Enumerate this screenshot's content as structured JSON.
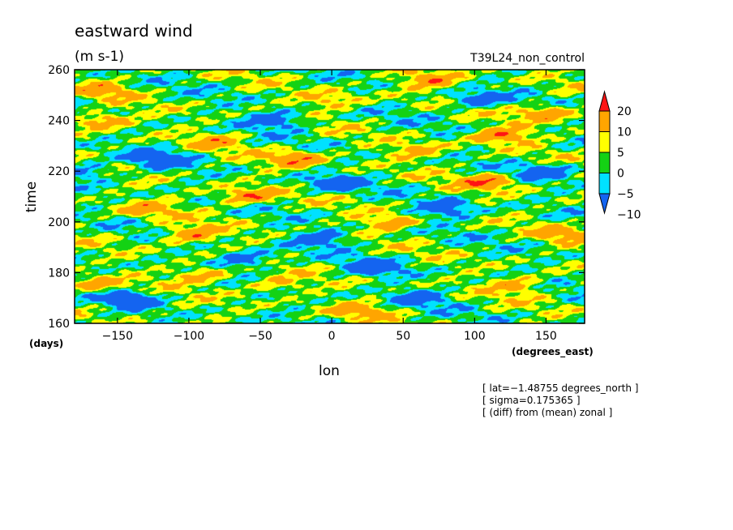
{
  "chart_data": {
    "type": "heatmap",
    "title": "eastward wind",
    "units": "(m s-1)",
    "experiment": "T39L24_non_control",
    "xlabel": "lon",
    "xunits": "(degrees_east)",
    "ylabel": "time",
    "yunits": "(days)",
    "xlim": [
      -180,
      177
    ],
    "ylim": [
      160,
      260
    ],
    "x_ticks": [
      -150,
      -100,
      -50,
      0,
      50,
      100,
      150
    ],
    "y_ticks": [
      160,
      180,
      200,
      220,
      240,
      260
    ],
    "colorbar": {
      "levels": [
        -10,
        -5,
        0,
        5,
        10,
        20
      ],
      "labels": [
        "20",
        "10",
        "5",
        "0",
        "−5",
        "−10"
      ],
      "colors": [
        "#1464f0",
        "#00e1ff",
        "#14d214",
        "#ffff00",
        "#ffa500",
        "#ff1414"
      ],
      "extend": "both"
    },
    "blobs": [
      {
        "lon": -60,
        "day": 210,
        "value": 22
      },
      {
        "lon": 120,
        "day": 234,
        "value": 22
      },
      {
        "lon": -100,
        "day": 195,
        "value": 21
      },
      {
        "lon": -25,
        "day": 225,
        "value": 21
      },
      {
        "lon": -160,
        "day": 240,
        "value": 21
      },
      {
        "lon": 150,
        "day": 243,
        "value": 21
      },
      {
        "lon": -90,
        "day": 179,
        "value": 20
      },
      {
        "lon": 110,
        "day": 216,
        "value": 20
      },
      {
        "lon": 70,
        "day": 256,
        "value": 20
      },
      {
        "lon": -130,
        "day": 205,
        "value": 16
      },
      {
        "lon": 40,
        "day": 200,
        "value": 16
      },
      {
        "lon": 130,
        "day": 175,
        "value": 17
      },
      {
        "lon": 20,
        "day": 165,
        "value": 16
      },
      {
        "lon": -165,
        "day": 175,
        "value": 16
      },
      {
        "lon": -40,
        "day": 175,
        "value": 15
      },
      {
        "lon": 60,
        "day": 228,
        "value": 15
      },
      {
        "lon": -160,
        "day": 252,
        "value": 16
      },
      {
        "lon": 0,
        "day": 248,
        "value": 15
      },
      {
        "lon": 165,
        "day": 195,
        "value": 15
      },
      {
        "lon": -80,
        "day": 232,
        "value": 14
      },
      {
        "lon": -120,
        "day": 225,
        "value": -14
      },
      {
        "lon": -40,
        "day": 240,
        "value": -15
      },
      {
        "lon": 30,
        "day": 182,
        "value": -15
      },
      {
        "lon": -60,
        "day": 185,
        "value": -14
      },
      {
        "lon": 80,
        "day": 205,
        "value": -14
      },
      {
        "lon": 150,
        "day": 220,
        "value": -13
      },
      {
        "lon": -140,
        "day": 170,
        "value": -13
      },
      {
        "lon": 0,
        "day": 215,
        "value": -14
      },
      {
        "lon": 100,
        "day": 248,
        "value": -13
      },
      {
        "lon": -170,
        "day": 220,
        "value": -12
      },
      {
        "lon": 60,
        "day": 170,
        "value": -12
      },
      {
        "lon": -10,
        "day": 193,
        "value": -13
      }
    ]
  },
  "info": {
    "lat": "[ lat=−1.48755 degrees_north ]",
    "sigma": "[ sigma=0.175365 ]",
    "diff": "[ (diff) from (mean) zonal ]"
  }
}
